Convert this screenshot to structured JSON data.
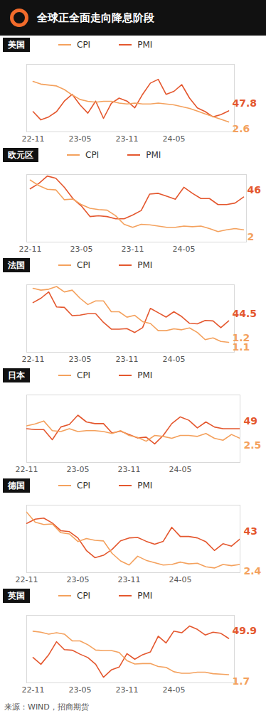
{
  "title": "全球正全面走向降息阶段",
  "source": "来源：WIND，招商期货",
  "chart_data": [
    {
      "type": "line",
      "title": "美国",
      "x": [
        "22-11",
        null,
        null,
        null,
        null,
        null,
        "23-05",
        null,
        null,
        null,
        null,
        null,
        "23-11",
        null,
        null,
        null,
        null,
        null,
        "24-05",
        null,
        null,
        null,
        null,
        null,
        null,
        null
      ],
      "series": [
        {
          "name": "CPI",
          "color": "#f4a15d",
          "axis": "y2",
          "values": [
            7.1,
            6.8,
            6.7,
            6.6,
            6.2,
            5.6,
            5.1,
            4.9,
            4.8,
            4.9,
            4.9,
            4.7,
            4.6,
            4.7,
            4.6,
            4.6,
            4.7,
            4.6,
            4.5,
            4.3,
            4.1,
            3.8,
            3.5,
            3.2,
            2.9,
            2.6
          ]
        },
        {
          "name": "PMI",
          "color": "#e4572e",
          "values": [
            47.7,
            46.6,
            47.0,
            47.7,
            49.1,
            50.0,
            48.6,
            47.5,
            49.1,
            46.8,
            48.8,
            49.5,
            49.1,
            48.2,
            50.0,
            51.5,
            52.0,
            50.0,
            50.4,
            51.3,
            49.5,
            48.2,
            47.7,
            47.0,
            47.3,
            47.8
          ]
        }
      ],
      "ylim": [
        45,
        54
      ],
      "y2lim": [
        1.5,
        9
      ],
      "annotations": [
        {
          "text": "47.8",
          "series": "PMI"
        },
        {
          "text": "2.6",
          "series": "CPI"
        }
      ],
      "legend": "top",
      "grid": false,
      "tick_labels": "x"
    },
    {
      "type": "line",
      "title": "欧元区",
      "x": [
        "22-11",
        null,
        null,
        null,
        null,
        null,
        "23-05",
        null,
        null,
        null,
        null,
        null,
        "23-11",
        null,
        null,
        null,
        null,
        null,
        "24-05",
        null,
        null,
        null,
        null,
        null,
        null,
        null
      ],
      "series": [
        {
          "name": "CPI",
          "color": "#f4a15d",
          "axis": "y2",
          "values": [
            10.1,
            9.2,
            8.6,
            8.5,
            6.9,
            7.0,
            6.1,
            5.5,
            5.3,
            5.2,
            4.3,
            2.9,
            2.4,
            2.9,
            2.8,
            2.6,
            2.4,
            2.4,
            2.6,
            2.5,
            2.6,
            2.2,
            1.7,
            2.0,
            2.2,
            2.0
          ]
        },
        {
          "name": "PMI",
          "color": "#e4572e",
          "values": [
            47.1,
            47.8,
            48.8,
            48.5,
            47.3,
            45.8,
            44.8,
            43.4,
            43.5,
            43.4,
            43.1,
            43.1,
            43.6,
            44.2,
            46.4,
            46.5,
            46.1,
            45.7,
            47.3,
            46.5,
            45.8,
            45.8,
            45.0,
            45.0,
            45.2,
            46.0
          ]
        }
      ],
      "ylim": [
        40,
        49
      ],
      "y2lim": [
        0,
        11
      ],
      "annotations": [
        {
          "text": "46",
          "series": "PMI"
        },
        {
          "text": "2",
          "series": "CPI"
        }
      ],
      "legend": "top",
      "grid": false,
      "tick_labels": "x"
    },
    {
      "type": "line",
      "title": "法国",
      "x": [
        "22-11",
        null,
        null,
        null,
        null,
        null,
        "23-05",
        null,
        null,
        null,
        null,
        null,
        "23-11",
        null,
        null,
        null,
        null,
        null,
        "24-05",
        null,
        null,
        null,
        null,
        null,
        null,
        null
      ],
      "series": [
        {
          "name": "CPI",
          "color": "#f4a15d",
          "axis": "y2",
          "values": [
            7.1,
            6.9,
            7.0,
            7.3,
            6.7,
            6.9,
            6.0,
            5.3,
            5.7,
            5.7,
            4.5,
            4.5,
            3.9,
            4.1,
            3.4,
            3.2,
            2.4,
            2.4,
            2.6,
            2.5,
            2.7,
            2.2,
            1.4,
            1.6,
            1.2,
            1.1
          ]
        },
        {
          "name": "PMI",
          "color": "#e4572e",
          "values": [
            48.3,
            49.2,
            50.5,
            47.4,
            47.3,
            45.6,
            45.7,
            46.0,
            46.0,
            44.2,
            42.8,
            42.8,
            42.9,
            42.1,
            43.1,
            47.1,
            46.2,
            45.3,
            46.4,
            45.4,
            44.0,
            43.9,
            44.6,
            44.5,
            43.1,
            44.5
          ]
        }
      ],
      "ylim": [
        38,
        52
      ],
      "y2lim": [
        0,
        7.5
      ],
      "annotations": [
        {
          "text": "44.5",
          "series": "PMI"
        },
        {
          "text": "1.2",
          "series": "CPI"
        },
        {
          "text": "1.1",
          "series": "CPI"
        }
      ],
      "legend": "top",
      "grid": false,
      "tick_labels": "x"
    },
    {
      "type": "line",
      "title": "日本",
      "x": [
        "22-11",
        null,
        null,
        null,
        null,
        null,
        "23-05",
        null,
        null,
        null,
        null,
        null,
        "23-11",
        null,
        null,
        null,
        null,
        null,
        "24-05",
        null,
        null,
        null,
        null,
        null,
        null,
        null
      ],
      "series": [
        {
          "name": "CPI",
          "color": "#f4a15d",
          "axis": "y2",
          "values": [
            3.8,
            4.0,
            4.3,
            3.3,
            3.2,
            3.5,
            3.2,
            3.3,
            3.3,
            3.2,
            3.0,
            3.3,
            2.8,
            2.6,
            2.2,
            2.8,
            2.7,
            2.5,
            2.8,
            2.8,
            2.7,
            3.0,
            2.5,
            2.3,
            2.9,
            2.5
          ]
        },
        {
          "name": "PMI",
          "color": "#e4572e",
          "values": [
            49.0,
            48.9,
            48.9,
            47.7,
            49.2,
            49.5,
            50.6,
            49.8,
            49.6,
            49.6,
            48.5,
            48.7,
            48.3,
            47.9,
            48.0,
            47.2,
            48.2,
            49.6,
            50.4,
            50.0,
            49.1,
            49.8,
            49.2,
            49.0,
            49.0,
            49.0
          ]
        }
      ],
      "ylim": [
        45,
        53
      ],
      "y2lim": [
        0,
        7
      ],
      "annotations": [
        {
          "text": "49",
          "series": "PMI"
        },
        {
          "text": "2.5",
          "series": "CPI"
        }
      ],
      "legend": "top",
      "grid": false,
      "tick_labels": "x"
    },
    {
      "type": "line",
      "title": "德国",
      "x": [
        "22-11",
        null,
        null,
        null,
        null,
        null,
        "23-05",
        null,
        null,
        null,
        null,
        null,
        "23-11",
        null,
        null,
        null,
        null,
        null,
        "24-05",
        null,
        null,
        null,
        null,
        null,
        null,
        null
      ],
      "series": [
        {
          "name": "CPI",
          "color": "#f4a15d",
          "axis": "y2",
          "values": [
            11.3,
            9.6,
            9.2,
            9.3,
            7.8,
            7.6,
            6.3,
            6.8,
            6.5,
            6.4,
            4.3,
            3.0,
            2.3,
            3.8,
            3.1,
            2.7,
            2.3,
            2.4,
            2.8,
            2.5,
            2.6,
            2.0,
            1.8,
            2.4,
            2.2,
            2.4
          ]
        },
        {
          "name": "PMI",
          "color": "#e4572e",
          "values": [
            46.2,
            47.1,
            47.3,
            46.3,
            44.7,
            44.5,
            43.2,
            40.6,
            39.1,
            39.6,
            40.8,
            42.6,
            43.2,
            43.3,
            42.5,
            41.9,
            42.5,
            45.4,
            43.5,
            43.5,
            43.2,
            42.4,
            40.6,
            42.0,
            41.5,
            43.0
          ]
        }
      ],
      "ylim": [
        36,
        50
      ],
      "y2lim": [
        1,
        12.5
      ],
      "annotations": [
        {
          "text": "43",
          "series": "PMI"
        },
        {
          "text": "2.4",
          "series": "CPI"
        }
      ],
      "legend": "top",
      "grid": false,
      "tick_labels": "x"
    },
    {
      "type": "line",
      "title": "英国",
      "x": [
        "22-11",
        null,
        null,
        null,
        null,
        null,
        "23-05",
        null,
        null,
        null,
        null,
        null,
        "23-11",
        null,
        null,
        null,
        null,
        null,
        "24-05",
        null,
        null,
        null,
        null,
        null,
        null,
        null
      ],
      "series": [
        {
          "name": "CPI",
          "color": "#f4a15d",
          "axis": "y2",
          "values": [
            10.7,
            10.5,
            10.1,
            10.4,
            10.1,
            8.7,
            8.7,
            7.9,
            6.8,
            6.7,
            6.7,
            6.3,
            4.6,
            3.9,
            4.0,
            4.0,
            3.4,
            3.2,
            2.3,
            2.0,
            2.0,
            2.2,
            2.2,
            1.9,
            1.8,
            1.7
          ]
        },
        {
          "name": "PMI",
          "color": "#e4572e",
          "values": [
            46.5,
            45.3,
            47.0,
            49.3,
            47.9,
            47.8,
            47.1,
            46.5,
            45.3,
            43.0,
            44.3,
            44.8,
            47.2,
            46.2,
            47.0,
            47.5,
            50.3,
            49.1,
            51.2,
            50.9,
            52.1,
            51.5,
            50.5,
            51.0,
            50.8,
            49.9
          ]
        }
      ],
      "ylim": [
        42,
        54
      ],
      "y2lim": [
        0,
        14
      ],
      "annotations": [
        {
          "text": "49.9",
          "series": "PMI"
        },
        {
          "text": "1.7",
          "series": "CPI"
        }
      ],
      "legend": "top",
      "grid": false,
      "tick_labels": "x"
    }
  ]
}
